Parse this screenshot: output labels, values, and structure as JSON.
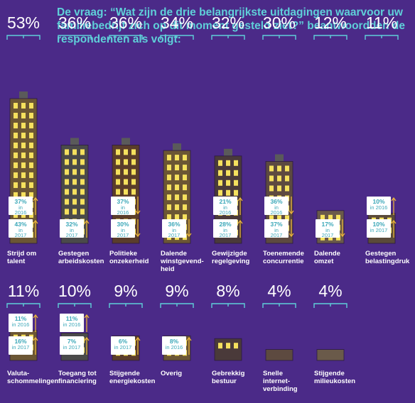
{
  "question": "De vraag: “Wat zijn de drie belangrijkste uitdagingen waarvoor uw familiebedrijf zich op dit moment gesteld ziet?” beantwoordden de respondenten als volgt:",
  "colors": {
    "background": "#4b2a88",
    "accent": "#5fd0d9",
    "window": "#f5e15e",
    "arrow": "#e9b23c"
  },
  "chart_data": {
    "type": "bar",
    "series": [
      {
        "values": [
          53,
          36,
          36,
          34,
          32,
          30,
          12,
          11,
          11,
          10,
          9,
          9,
          8,
          4,
          4
        ]
      }
    ],
    "categories": [
      "Strijd om talent",
      "Gestegen arbeidskosten",
      "Politieke onzekerheid",
      "Dalende winstgevendheid",
      "Gewijzigde regelgeving",
      "Toenemende concurrentie",
      "Dalende omzet",
      "Gestegen belastingdruk",
      "Valutaschommelingen",
      "Toegang tot financiering",
      "Stijgende energiekosten",
      "Overig",
      "Gebrekkig bestuur",
      "Snelle internetverbinding",
      "Stijgende milieukosten"
    ],
    "percent_labels": [
      "53%",
      "36%",
      "36%",
      "34%",
      "32%",
      "30%",
      "12%",
      "11%",
      "11%",
      "10%",
      "9%",
      "9%",
      "8%",
      "4%",
      "4%"
    ],
    "label_lines": [
      [
        "Strijd om",
        "talent"
      ],
      [
        "Gestegen",
        "arbeidskosten"
      ],
      [
        "Politieke",
        "onzekerheid"
      ],
      [
        "Dalende",
        "winstgevend-",
        "heid"
      ],
      [
        "Gewijzigde",
        "regelgeving"
      ],
      [
        "Toenemende",
        "concurrentie"
      ],
      [
        "Dalende",
        "omzet"
      ],
      [
        "Gestegen",
        "belastingdruk"
      ],
      [
        "Valuta-",
        "schommelingen"
      ],
      [
        "Toegang tot",
        "financiering"
      ],
      [
        "Stijgende",
        "energiekosten"
      ],
      [
        "Overig"
      ],
      [
        "Gebrekkig",
        "bestuur"
      ],
      [
        "Snelle",
        "internet-",
        "verbinding"
      ],
      [
        "Stijgende",
        "milieukosten"
      ]
    ],
    "comparisons": [
      [
        {
          "value": "37%",
          "lines": [
            "in",
            "2016"
          ],
          "direction": "up"
        },
        {
          "value": "43%",
          "lines": [
            "in",
            "2017"
          ],
          "direction": "up"
        }
      ],
      [
        {
          "value": "32%",
          "lines": [
            "in",
            "2017"
          ],
          "direction": "up"
        }
      ],
      [
        {
          "value": "37%",
          "lines": [
            "in",
            "2016"
          ],
          "direction": "down"
        },
        {
          "value": "30%",
          "lines": [
            "in",
            "2017"
          ],
          "direction": "down"
        }
      ],
      [
        {
          "value": "36%",
          "lines": [
            "in",
            "2017"
          ],
          "direction": "down"
        }
      ],
      [
        {
          "value": "21%",
          "lines": [
            "in",
            "2016"
          ],
          "direction": "up"
        },
        {
          "value": "28%",
          "lines": [
            "in",
            "2017"
          ],
          "direction": "up"
        }
      ],
      [
        {
          "value": "36%",
          "lines": [
            "in",
            "2016"
          ],
          "direction": "down"
        },
        {
          "value": "37%",
          "lines": [
            "in",
            "2017"
          ],
          "direction": "down"
        }
      ],
      [
        {
          "value": "17%",
          "lines": [
            "in",
            "2017"
          ],
          "direction": "down"
        }
      ],
      [
        {
          "value": "10%",
          "lines": [
            "in 2016"
          ],
          "direction": "up"
        },
        {
          "value": "10%",
          "lines": [
            "in 2017"
          ],
          "direction": "up"
        }
      ],
      [
        {
          "value": "11%",
          "lines": [
            "in 2016"
          ],
          "direction": "up"
        },
        {
          "value": "16%",
          "lines": [
            "in 2017"
          ],
          "direction": "up"
        }
      ],
      [
        {
          "value": "11%",
          "lines": [
            "in 2016"
          ],
          "direction": "up"
        },
        {
          "value": "7%",
          "lines": [
            "in 2017"
          ],
          "direction": "up"
        }
      ],
      [
        {
          "value": "6%",
          "lines": [
            "in 2017"
          ],
          "direction": "up"
        }
      ],
      [
        {
          "value": "8%",
          "lines": [
            "in 2016"
          ],
          "direction": "up"
        }
      ],
      [],
      [],
      []
    ],
    "legend": "none"
  }
}
